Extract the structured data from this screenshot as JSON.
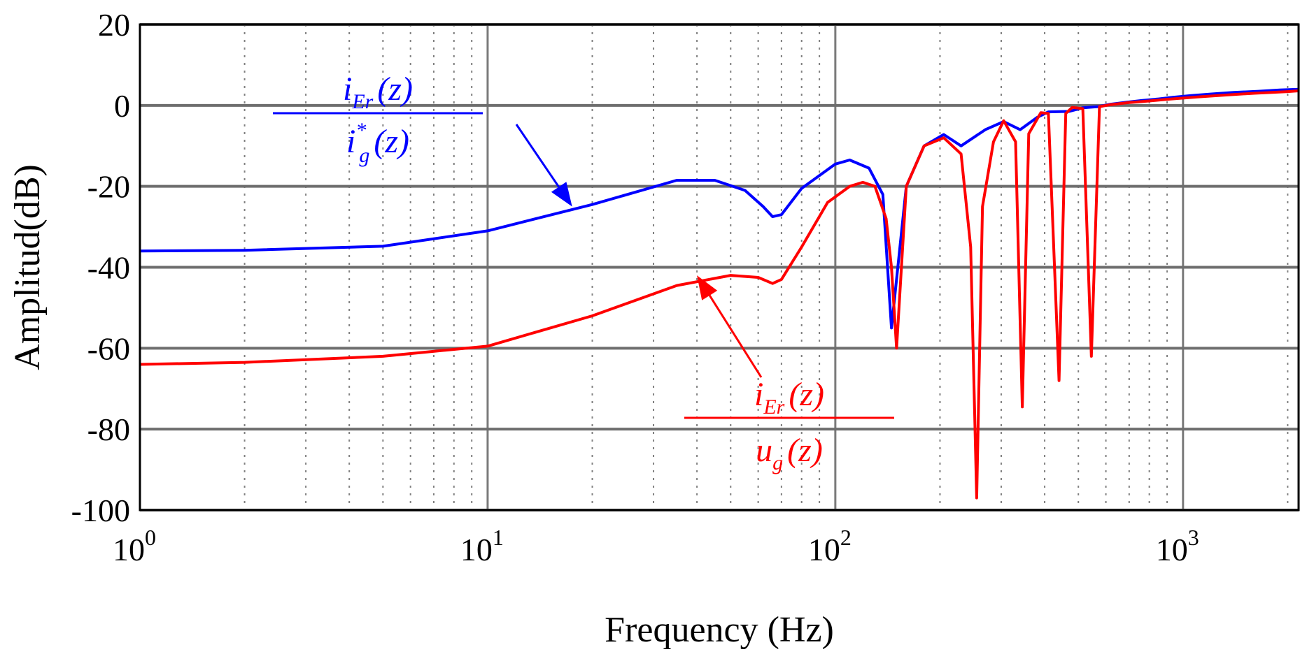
{
  "chart_data": {
    "type": "line",
    "title": "",
    "xlabel": "Frequency (Hz)",
    "ylabel": "Amplitud(dB)",
    "xscale": "log",
    "xlim": [
      1,
      2150
    ],
    "ylim": [
      -100,
      20
    ],
    "x_ticks": [
      {
        "base": "10",
        "exp": "0"
      },
      {
        "base": "10",
        "exp": "1"
      },
      {
        "base": "10",
        "exp": "2"
      },
      {
        "base": "10",
        "exp": "3"
      }
    ],
    "y_ticks": [
      "20",
      "0",
      "-20",
      "-40",
      "-60",
      "-80",
      "-100"
    ],
    "grid": true,
    "series": [
      {
        "name": "iEr(z)/i*g(z)",
        "color": "#0000ff",
        "x": [
          1,
          2,
          5,
          10,
          20,
          35,
          45,
          55,
          62,
          66,
          70,
          80,
          100,
          110,
          125,
          137,
          145,
          160,
          180,
          205,
          230,
          270,
          305,
          340,
          380,
          410,
          470,
          515,
          570,
          620,
          690,
          760,
          850,
          935,
          1050,
          1200,
          1400,
          1650,
          1900,
          2150
        ],
        "values": [
          -36,
          -35.8,
          -34.8,
          -31,
          -24.5,
          -18.5,
          -18.5,
          -21,
          -25,
          -27.5,
          -27,
          -20.5,
          -14.5,
          -13.5,
          -15.5,
          -22,
          -55,
          -20,
          -10,
          -7.2,
          -10,
          -6,
          -4,
          -6,
          -3,
          -1.6,
          -1.5,
          -0.6,
          -0.3,
          0.3,
          0.8,
          1.2,
          1.6,
          2.0,
          2.4,
          2.8,
          3.2,
          3.5,
          3.8,
          4.0
        ]
      },
      {
        "name": "iEr(z)/ug(z)",
        "color": "#ff0000",
        "x": [
          1,
          2,
          5,
          10,
          20,
          35,
          50,
          60,
          66,
          70,
          80,
          95,
          110,
          120,
          130,
          140,
          145,
          150,
          160,
          180,
          205,
          230,
          245,
          255,
          265,
          285,
          305,
          330,
          345,
          360,
          390,
          410,
          440,
          460,
          480,
          515,
          545,
          575,
          620,
          700,
          800,
          900,
          1000,
          1100,
          1250,
          1400,
          1600,
          1800,
          2000,
          2150
        ],
        "values": [
          -64,
          -63.5,
          -62,
          -59.5,
          -52,
          -44.5,
          -42,
          -42.5,
          -44,
          -43,
          -35,
          -24,
          -20,
          -19,
          -20,
          -28,
          -40,
          -60,
          -20,
          -10,
          -8,
          -12,
          -35,
          -97,
          -25,
          -9,
          -3.8,
          -9,
          -74.5,
          -7,
          -1.8,
          -2,
          -68,
          -2,
          -0.5,
          -0.8,
          -62,
          -0.3,
          0.2,
          0.7,
          1.1,
          1.5,
          1.8,
          2.1,
          2.4,
          2.7,
          3.0,
          3.2,
          3.4,
          3.6
        ]
      }
    ],
    "annotations": [
      {
        "numerator_main": "i",
        "numerator_sub": "Er",
        "numerator_arg": "(z)",
        "denominator_main": "i",
        "denominator_sup": "*",
        "denominator_sub": "g",
        "denominator_arg": "(z)",
        "color": "#0000ff",
        "target_series": "iEr(z)/i*g(z)",
        "arrow_to": {
          "x": 17.5,
          "y": -25
        }
      },
      {
        "numerator_main": "i",
        "numerator_sub": "Er",
        "numerator_arg": "(z)",
        "denominator_main": "u",
        "denominator_sub": "g",
        "denominator_arg": "(z)",
        "color": "#ff0000",
        "target_series": "iEr(z)/ug(z)",
        "arrow_to": {
          "x": 40,
          "y": -42
        }
      }
    ]
  }
}
